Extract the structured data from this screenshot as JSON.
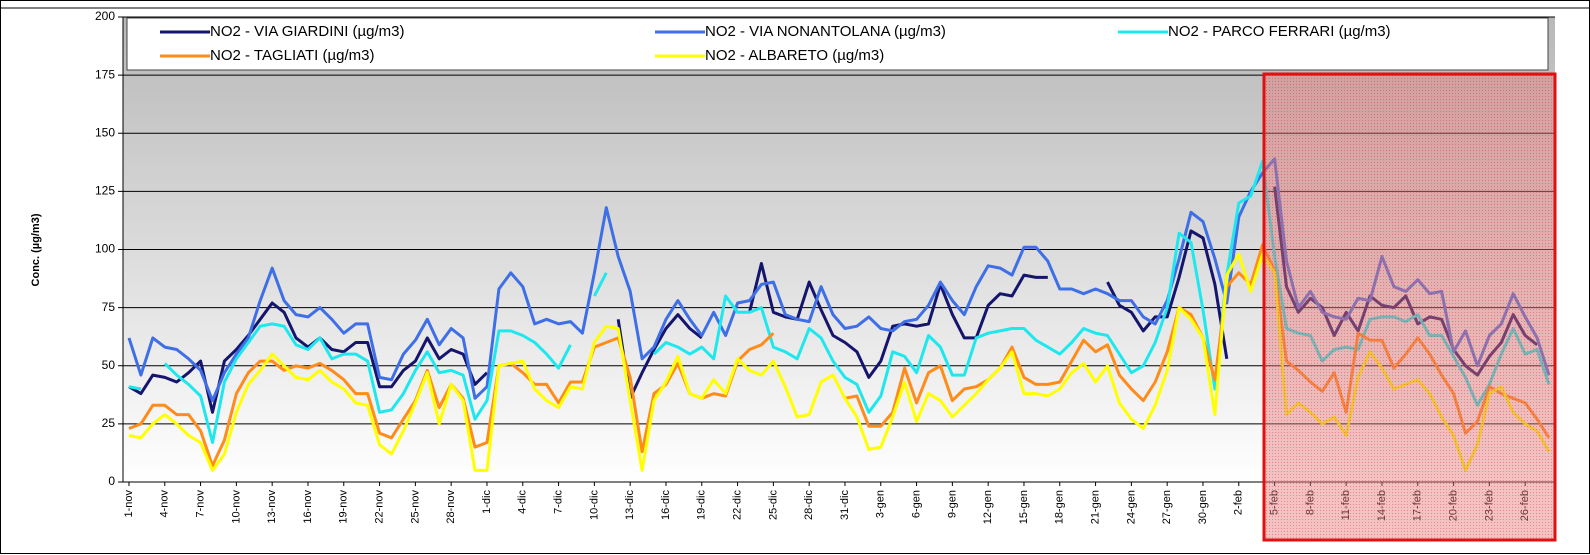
{
  "chart_data": {
    "type": "line",
    "y_label": "Conc. (µg/m3)",
    "ylim": [
      0,
      200
    ],
    "yticks": [
      0,
      25,
      50,
      75,
      100,
      125,
      150,
      175,
      200
    ],
    "grid": true,
    "categories": [
      "1-nov",
      null,
      null,
      "4-nov",
      null,
      null,
      "7-nov",
      null,
      null,
      "10-nov",
      null,
      null,
      "13-nov",
      null,
      null,
      "16-nov",
      null,
      null,
      "19-nov",
      null,
      null,
      "22-nov",
      null,
      null,
      "25-nov",
      null,
      null,
      "28-nov",
      null,
      null,
      "1-dic",
      null,
      null,
      "4-dic",
      null,
      null,
      "7-dic",
      null,
      null,
      "10-dic",
      null,
      null,
      "13-dic",
      null,
      null,
      "16-dic",
      null,
      null,
      "19-dic",
      null,
      null,
      "22-dic",
      null,
      null,
      "25-dic",
      null,
      null,
      "28-dic",
      null,
      null,
      "31-dic",
      null,
      null,
      "3-gen",
      null,
      null,
      "6-gen",
      null,
      null,
      "9-gen",
      null,
      null,
      "12-gen",
      null,
      null,
      "15-gen",
      null,
      null,
      "18-gen",
      null,
      null,
      "21-gen",
      null,
      null,
      "24-gen",
      null,
      null,
      "27-gen",
      null,
      null,
      "30-gen",
      null,
      null,
      "2-feb",
      null,
      null,
      "5-feb",
      null,
      null,
      "8-feb",
      null,
      null,
      "11-feb",
      null,
      null,
      "14-feb",
      null,
      null,
      "17-feb",
      null,
      null,
      "20-feb",
      null,
      null,
      "23-feb",
      null,
      null,
      "26-feb",
      null,
      null
    ],
    "series": [
      {
        "name": "NO2 - VIA GIARDINI  (µg/m3)",
        "color": "#15156e",
        "values": [
          41,
          38,
          46,
          45,
          43,
          47,
          52,
          30,
          52,
          57,
          63,
          70,
          77,
          73,
          62,
          58,
          62,
          57,
          56,
          60,
          60,
          41,
          41,
          48,
          52,
          62,
          53,
          57,
          55,
          42,
          47,
          null,
          null,
          null,
          null,
          null,
          null,
          null,
          null,
          null,
          null,
          70,
          36,
          47,
          57,
          66,
          72,
          66,
          62,
          null,
          null,
          null,
          73,
          94,
          73,
          71,
          70,
          86,
          74,
          63,
          60,
          56,
          45,
          52,
          67,
          68,
          67,
          68,
          85,
          72,
          62,
          62,
          76,
          81,
          80,
          89,
          88,
          88,
          null,
          null,
          null,
          null,
          86,
          76,
          73,
          65,
          71,
          71,
          88,
          108,
          105,
          85,
          53,
          null,
          null,
          null,
          127,
          84,
          73,
          79,
          75,
          63,
          73,
          65,
          80,
          76,
          75,
          80,
          68,
          71,
          70,
          57,
          50,
          46,
          54,
          60,
          72,
          63,
          59,
          null
        ]
      },
      {
        "name": "NO2 - VIA NONANTOLANA (µg/m3)",
        "color": "#3f6fe6",
        "values": [
          62,
          46,
          62,
          58,
          57,
          53,
          48,
          35,
          47,
          55,
          62,
          78,
          92,
          78,
          72,
          71,
          75,
          70,
          64,
          68,
          68,
          45,
          44,
          55,
          61,
          70,
          59,
          66,
          62,
          36,
          41,
          83,
          90,
          84,
          68,
          70,
          68,
          69,
          64,
          90,
          118,
          97,
          82,
          53,
          58,
          70,
          78,
          70,
          63,
          73,
          63,
          77,
          78,
          85,
          86,
          72,
          70,
          69,
          84,
          72,
          66,
          67,
          71,
          66,
          65,
          69,
          70,
          76,
          86,
          78,
          72,
          84,
          93,
          92,
          89,
          101,
          101,
          95,
          83,
          83,
          81,
          83,
          81,
          78,
          78,
          71,
          68,
          78,
          96,
          116,
          112,
          96,
          77,
          114,
          125,
          133,
          139,
          95,
          75,
          82,
          73,
          71,
          70,
          79,
          78,
          97,
          84,
          82,
          87,
          81,
          82,
          56,
          65,
          50,
          63,
          68,
          81,
          71,
          62,
          46
        ]
      },
      {
        "name": "NO2 - PARCO FERRARI (µg/m3)",
        "color": "#1ee8ee",
        "values": [
          41,
          40,
          null,
          51,
          46,
          42,
          37,
          17,
          43,
          53,
          60,
          67,
          68,
          67,
          59,
          57,
          62,
          53,
          55,
          55,
          52,
          30,
          31,
          38,
          48,
          56,
          47,
          48,
          46,
          27,
          35,
          65,
          65,
          63,
          60,
          55,
          49,
          59,
          null,
          80,
          90,
          null,
          null,
          null,
          55,
          60,
          58,
          55,
          58,
          53,
          80,
          73,
          73,
          75,
          58,
          56,
          53,
          66,
          62,
          52,
          45,
          42,
          30,
          37,
          56,
          54,
          47,
          63,
          58,
          46,
          46,
          62,
          64,
          65,
          66,
          66,
          61,
          58,
          55,
          60,
          66,
          64,
          63,
          55,
          47,
          50,
          60,
          75,
          107,
          103,
          74,
          40,
          89,
          120,
          123,
          138,
          97,
          66,
          64,
          63,
          52,
          57,
          58,
          57,
          70,
          71,
          71,
          69,
          72,
          63,
          63,
          54,
          45,
          33,
          42,
          55,
          66,
          55,
          57,
          42
        ]
      },
      {
        "name": "NO2 - TAGLIATI (µg/m3)",
        "color": "#ff8c1a",
        "values": [
          23,
          25,
          33,
          33,
          29,
          29,
          22,
          7,
          18,
          38,
          47,
          52,
          52,
          48,
          50,
          49,
          51,
          48,
          44,
          38,
          38,
          21,
          19,
          27,
          35,
          48,
          32,
          42,
          36,
          15,
          17,
          50,
          51,
          47,
          42,
          42,
          34,
          43,
          43,
          58,
          60,
          62,
          45,
          13,
          38,
          42,
          51,
          38,
          36,
          38,
          37,
          52,
          57,
          59,
          64,
          null,
          null,
          null,
          null,
          null,
          36,
          37,
          24,
          24,
          30,
          49,
          34,
          47,
          50,
          35,
          40,
          41,
          44,
          49,
          58,
          45,
          42,
          42,
          43,
          52,
          61,
          56,
          59,
          46,
          40,
          35,
          43,
          56,
          75,
          72,
          62,
          44,
          84,
          90,
          85,
          102,
          91,
          52,
          48,
          43,
          39,
          47,
          30,
          64,
          61,
          61,
          49,
          55,
          62,
          55,
          46,
          38,
          21,
          26,
          41,
          38,
          36,
          34,
          27,
          19
        ]
      },
      {
        "name": "NO2 - ALBARETO (µg/m3)",
        "color": "#ffff00",
        "values": [
          20,
          19,
          25,
          29,
          25,
          20,
          17,
          5,
          12,
          30,
          42,
          48,
          55,
          50,
          45,
          44,
          48,
          43,
          40,
          34,
          33,
          16,
          12,
          22,
          34,
          47,
          25,
          42,
          35,
          5,
          5,
          50,
          51,
          52,
          40,
          35,
          32,
          41,
          40,
          60,
          67,
          66,
          35,
          5,
          35,
          43,
          54,
          38,
          36,
          44,
          38,
          53,
          48,
          46,
          52,
          41,
          28,
          29,
          43,
          46,
          36,
          28,
          14,
          15,
          28,
          43,
          26,
          38,
          35,
          28,
          33,
          38,
          44,
          49,
          56,
          38,
          38,
          37,
          40,
          47,
          51,
          43,
          50,
          34,
          27,
          23,
          33,
          48,
          75,
          70,
          62,
          29,
          89,
          98,
          82,
          98,
          90,
          29,
          34,
          30,
          25,
          28,
          20,
          45,
          56,
          49,
          40,
          42,
          44,
          38,
          28,
          20,
          5,
          16,
          38,
          41,
          30,
          25,
          22,
          13
        ]
      }
    ]
  }
}
